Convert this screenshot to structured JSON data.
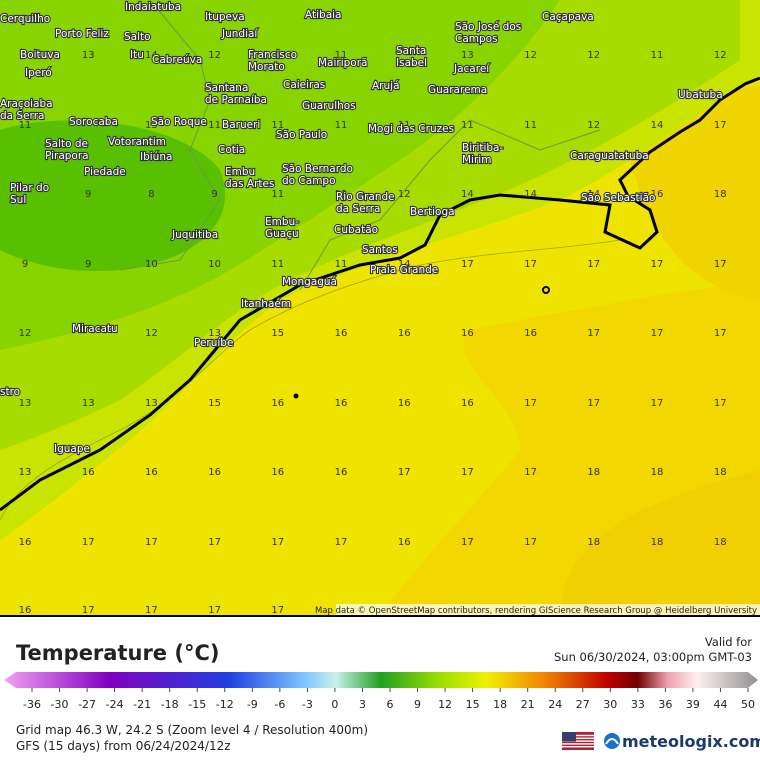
{
  "map": {
    "attribution": "Map data © OpenStreetMap contributors, rendering GIScience Research Group @ Heidelberg University",
    "places": [
      [
        "Cerquilho"
      ],
      [
        "Indaiatuba"
      ],
      [
        "Itupeva"
      ],
      [
        "Atibaia"
      ],
      [
        "São José dos",
        "Campos"
      ],
      [
        "Caçapava"
      ],
      [
        "Porto Feliz"
      ],
      [
        "Salto"
      ],
      [
        "Jundiaí"
      ],
      [
        "Boituva"
      ],
      [
        "Itu"
      ],
      [
        "Cabreúva"
      ],
      [
        "Francisco",
        "Morato"
      ],
      [
        "Mairiporã"
      ],
      [
        "Santa",
        "Isabel"
      ],
      [
        "Jacareí"
      ],
      [
        "Iperó"
      ],
      [
        "Caieiras"
      ],
      [
        "Santana",
        "de Parnaíba"
      ],
      [
        "Arujá"
      ],
      [
        "Guararema"
      ],
      [
        "Ubatuba"
      ],
      [
        "Araçoiaba",
        "da Serra"
      ],
      [
        "Guarulhos"
      ],
      [
        "Sorocaba"
      ],
      [
        "São Roque"
      ],
      [
        "Votorantim"
      ],
      [
        "Barueri"
      ],
      [
        "São Paulo"
      ],
      [
        "Mogi das Cruzes"
      ],
      [
        "Salto de",
        "Pirapora"
      ],
      [
        "Ibiúna"
      ],
      [
        "Cotia"
      ],
      [
        "Biritiba-",
        "Mirim"
      ],
      [
        "Caraguatatuba"
      ],
      [
        "Piedade"
      ],
      [
        "Embu",
        "das Artes"
      ],
      [
        "São Bernardo",
        "do Campo"
      ],
      [
        "Pilar do",
        "Sul"
      ],
      [
        "Rio Grande",
        "da Serra"
      ],
      [
        "São Sebastião"
      ],
      [
        "Bertioga"
      ],
      [
        "Embu-",
        "Guaçu"
      ],
      [
        "Juquitiba"
      ],
      [
        "Cubatão"
      ],
      [
        "Santos"
      ],
      [
        "Praia Grande"
      ],
      [
        "Mongaguá"
      ],
      [
        "Itanhaém"
      ],
      [
        "Miracatu"
      ],
      [
        "Peruíbe"
      ],
      [
        "stro"
      ],
      [
        "Iguape"
      ]
    ],
    "grid": [
      [
        null,
        13,
        14,
        12,
        null,
        11,
        null,
        13,
        12,
        12,
        11,
        12
      ],
      [
        11,
        null,
        13,
        11,
        11,
        11,
        11,
        11,
        11,
        12,
        14,
        17
      ],
      [
        null,
        9,
        8,
        9,
        11,
        11,
        12,
        14,
        14,
        14,
        16,
        18
      ],
      [
        9,
        9,
        10,
        10,
        11,
        11,
        14,
        17,
        17,
        17,
        17,
        17
      ],
      [
        12,
        null,
        12,
        13,
        15,
        16,
        16,
        16,
        16,
        17,
        17,
        17
      ],
      [
        13,
        13,
        13,
        15,
        16,
        16,
        16,
        16,
        17,
        17,
        17,
        17
      ],
      [
        13,
        16,
        16,
        16,
        16,
        16,
        17,
        17,
        17,
        18,
        18,
        18
      ],
      [
        16,
        17,
        17,
        17,
        17,
        17,
        16,
        17,
        17,
        18,
        18,
        18
      ],
      [
        16,
        17,
        17,
        17,
        17,
        null,
        null,
        null,
        null,
        null,
        null,
        null
      ]
    ]
  },
  "legend": {
    "title": "Temperature (°C)",
    "ticks": [
      -36,
      -30,
      -27,
      -24,
      -21,
      -18,
      -15,
      -12,
      -9,
      -6,
      -3,
      0,
      3,
      6,
      9,
      12,
      15,
      18,
      21,
      24,
      27,
      30,
      33,
      36,
      39,
      44,
      50
    ]
  },
  "valid": {
    "label": "Valid for",
    "time": "Sun 06/30/2024, 03:00pm GMT-03"
  },
  "footer": {
    "grid_info": "Grid map 46.3 W, 24.2 S (Zoom level 4 / Resolution 400m)",
    "model": "GFS (15 days) from  06/24/2024/12z",
    "brand": "meteologix.com"
  }
}
